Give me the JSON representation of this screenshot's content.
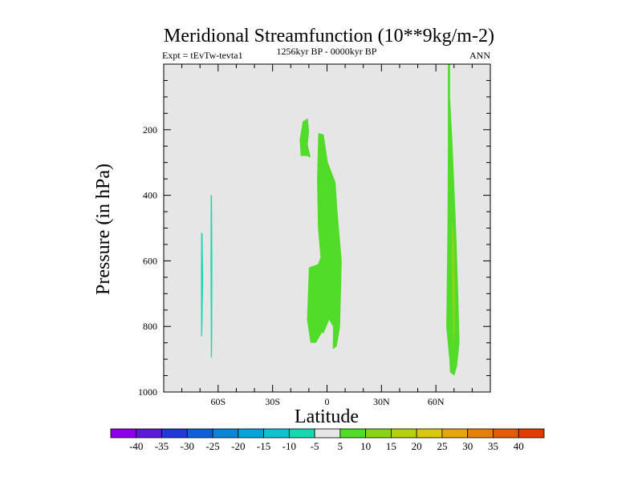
{
  "chart_data": {
    "type": "filled-contour",
    "title": "Meridional Streamfunction (10**9kg/m-2)",
    "left_label": "Expt = tEvTw-tevta1",
    "center_label": "1256kyr BP - 0000kyr BP",
    "right_label": "ANN",
    "xlabel": "Latitude",
    "ylabel": "Pressure (in hPa)",
    "xlim": [
      -90,
      90
    ],
    "ylim": [
      1000,
      0
    ],
    "x_ticks": [
      {
        "value": -60,
        "label": "60S"
      },
      {
        "value": -30,
        "label": "30S"
      },
      {
        "value": 0,
        "label": "0"
      },
      {
        "value": 30,
        "label": "30N"
      },
      {
        "value": 60,
        "label": "60N"
      }
    ],
    "y_ticks": [
      {
        "value": 200,
        "label": "200"
      },
      {
        "value": 400,
        "label": "400"
      },
      {
        "value": 600,
        "label": "600"
      },
      {
        "value": 800,
        "label": "800"
      },
      {
        "value": 1000,
        "label": "1000"
      }
    ],
    "background_color": "#e6e6e6",
    "colorbar": {
      "levels": [
        "-40",
        "-35",
        "-30",
        "-25",
        "-20",
        "-15",
        "-10",
        "-5",
        "5",
        "10",
        "15",
        "20",
        "25",
        "30",
        "35",
        "40"
      ],
      "colors": [
        "#8b00e8",
        "#5a1ad8",
        "#2038d8",
        "#1060dc",
        "#0a86d8",
        "#08a4d8",
        "#10c2d0",
        "#18d8b0",
        "#e6e6e6",
        "#50dc28",
        "#8ad418",
        "#b4d010",
        "#d8c810",
        "#e4a80c",
        "#e4800a",
        "#e45a08",
        "#e03c04"
      ]
    },
    "regions": [
      {
        "name": "sh-negative-cell-1",
        "level": "-10",
        "color": "#18d8b0",
        "points": [
          [
            -69.4,
            515
          ],
          [
            -68.6,
            515
          ],
          [
            -68.3,
            650
          ],
          [
            -68.6,
            780
          ],
          [
            -68.8,
            830
          ],
          [
            -69.4,
            830
          ],
          [
            -69.5,
            650
          ]
        ]
      },
      {
        "name": "sh-negative-cell-2",
        "level": "-10",
        "color": "#18d8b0",
        "points": [
          [
            -64.1,
            400
          ],
          [
            -63.4,
            400
          ],
          [
            -63.2,
            600
          ],
          [
            -63.3,
            820
          ],
          [
            -63.4,
            895
          ],
          [
            -64.0,
            895
          ],
          [
            -64.2,
            600
          ]
        ]
      },
      {
        "name": "upper-tropical-positive-cell",
        "level": "5",
        "color": "#50dc28",
        "points": [
          [
            -15.1,
            230
          ],
          [
            -13.4,
            175
          ],
          [
            -10.6,
            165
          ],
          [
            -9.9,
            205
          ],
          [
            -10.6,
            245
          ],
          [
            -9.0,
            285
          ],
          [
            -11.1,
            280
          ],
          [
            -14.5,
            280
          ]
        ]
      },
      {
        "name": "tropical-positive-cell",
        "level": "5",
        "color": "#50dc28",
        "points": [
          [
            -4.8,
            210
          ],
          [
            -1.8,
            215
          ],
          [
            0.5,
            300
          ],
          [
            4.7,
            360
          ],
          [
            5.8,
            450
          ],
          [
            8.1,
            600
          ],
          [
            7.2,
            800
          ],
          [
            5.4,
            860
          ],
          [
            3.2,
            870
          ],
          [
            3.3,
            800
          ],
          [
            1.2,
            780
          ],
          [
            -1.8,
            820
          ],
          [
            -3.0,
            820
          ],
          [
            -6.0,
            850
          ],
          [
            -9.1,
            850
          ],
          [
            -11.0,
            780
          ],
          [
            -10.0,
            620
          ],
          [
            -5.0,
            610
          ],
          [
            -3.6,
            590
          ],
          [
            -5.0,
            500
          ],
          [
            -5.5,
            350
          ]
        ]
      },
      {
        "name": "nh-positive-cell",
        "level": "5",
        "color": "#50dc28",
        "points": [
          [
            66.6,
            0
          ],
          [
            67.8,
            0
          ],
          [
            67.8,
            100
          ],
          [
            69.2,
            250
          ],
          [
            71.1,
            500
          ],
          [
            72.3,
            700
          ],
          [
            73.0,
            850
          ],
          [
            71.7,
            920
          ],
          [
            70.2,
            950
          ],
          [
            67.8,
            940
          ],
          [
            67.4,
            900
          ],
          [
            65.7,
            800
          ],
          [
            66.4,
            500
          ],
          [
            66.6,
            250
          ]
        ]
      },
      {
        "name": "nh-positive-core",
        "level": "10",
        "color": "#8ad418",
        "points": [
          [
            68.9,
            480
          ],
          [
            69.9,
            520
          ],
          [
            70.6,
            650
          ],
          [
            70.4,
            800
          ],
          [
            69.6,
            870
          ],
          [
            69.2,
            750
          ],
          [
            68.6,
            600
          ]
        ]
      }
    ]
  }
}
